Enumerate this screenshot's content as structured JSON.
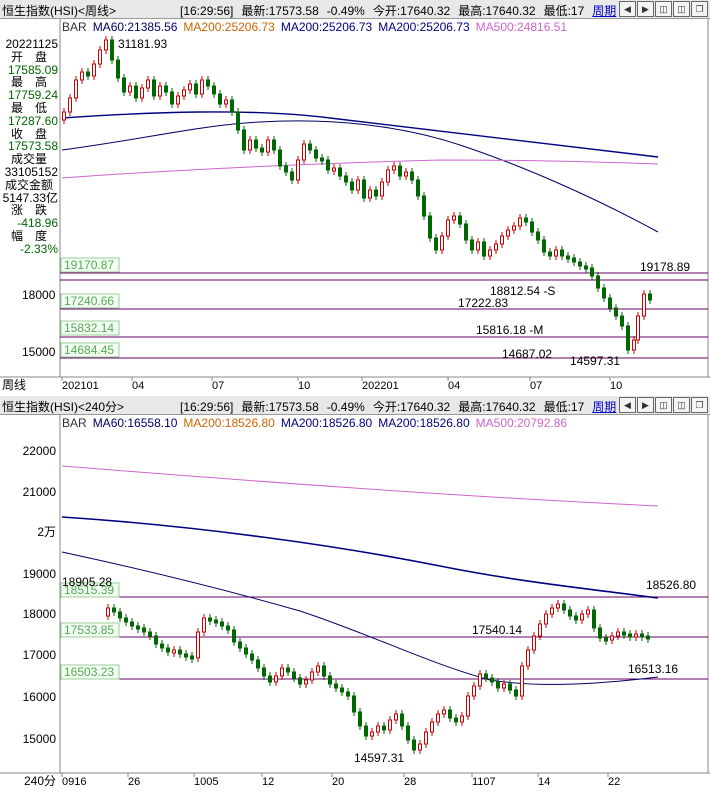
{
  "colors": {
    "up": "#cc0000",
    "down": "#006600",
    "ma60": "#000066",
    "ma200": "#000080",
    "ma500": "#cc66cc",
    "title_bg": "#e8e8e8",
    "link": "#0000cc",
    "hline": "#660066"
  },
  "top": {
    "title": "恒生指数(HSI)<周线>",
    "time": "[16:29:56]",
    "latest": "最新:17573.58",
    "change": "-0.49%",
    "open": "今开:17640.32",
    "high": "最高:17640.32",
    "low": "最低:17",
    "period_link": "周期",
    "legend": {
      "bar": "BAR",
      "ma60": "MA60:21385.56",
      "ma200a": "MA200:25206.73",
      "ma200b": "MA200:25206.73",
      "ma200c": "MA200:25206.73",
      "ma500": "MA500:24816.51"
    },
    "side": {
      "date": "20221125",
      "open_label": "开　盘",
      "open": "17585.09",
      "high_label": "最　高",
      "high": "17759.24",
      "low_label": "最　低",
      "low": "17287.60",
      "close_label": "收　盘",
      "close": "17573.58",
      "vol_label": "成交量",
      "vol": "33105152",
      "amt_label": "成交金额",
      "amt": "5147.33亿",
      "chg_label": "涨　跌",
      "chg": "-418.96",
      "pct_label": "幅　度",
      "pct": "-2.33%"
    },
    "yticks": [
      "18000",
      "15000"
    ],
    "hline_labels": [
      "19170.87",
      "17240.66",
      "15832.14",
      "14684.45"
    ],
    "annotations": {
      "peak": "31181.93",
      "a1": "19178.89",
      "a2": "18812.54 -S",
      "a3": "17222.83",
      "a4": "15816.18 -M",
      "a5": "14687.02",
      "a6": "14597.31"
    },
    "xticks": [
      "202101",
      "04",
      "07",
      "10",
      "202201",
      "04",
      "07",
      "10"
    ],
    "bottom_label": "周线"
  },
  "bottom": {
    "title": "恒生指数(HSI)<240分>",
    "time": "[16:29:56]",
    "latest": "最新:17573.58",
    "change": "-0.49%",
    "open": "今开:17640.32",
    "high": "最高:17640.32",
    "low": "最低:17",
    "period_link": "周期",
    "legend": {
      "bar": "BAR",
      "ma60": "MA60:16558.10",
      "ma200a": "MA200:18526.80",
      "ma200b": "MA200:18526.80",
      "ma200c": "MA200:18526.80",
      "ma500": "MA500:20792.86"
    },
    "yticks": [
      "22000",
      "21000",
      "2万",
      "19000",
      "18000",
      "17000",
      "16000",
      "15000"
    ],
    "hline_labels": [
      "18515.39",
      "17533.85",
      "16503.23"
    ],
    "annotations": {
      "a0": "18905.28",
      "a1": "18526.80",
      "a2": "17540.14",
      "a3": "16513.16",
      "a4": "14597.31"
    },
    "xticks": [
      "0916",
      "26",
      "1005",
      "12",
      "20",
      "28",
      "1107",
      "14",
      "22"
    ],
    "bottom_label": "240分"
  }
}
